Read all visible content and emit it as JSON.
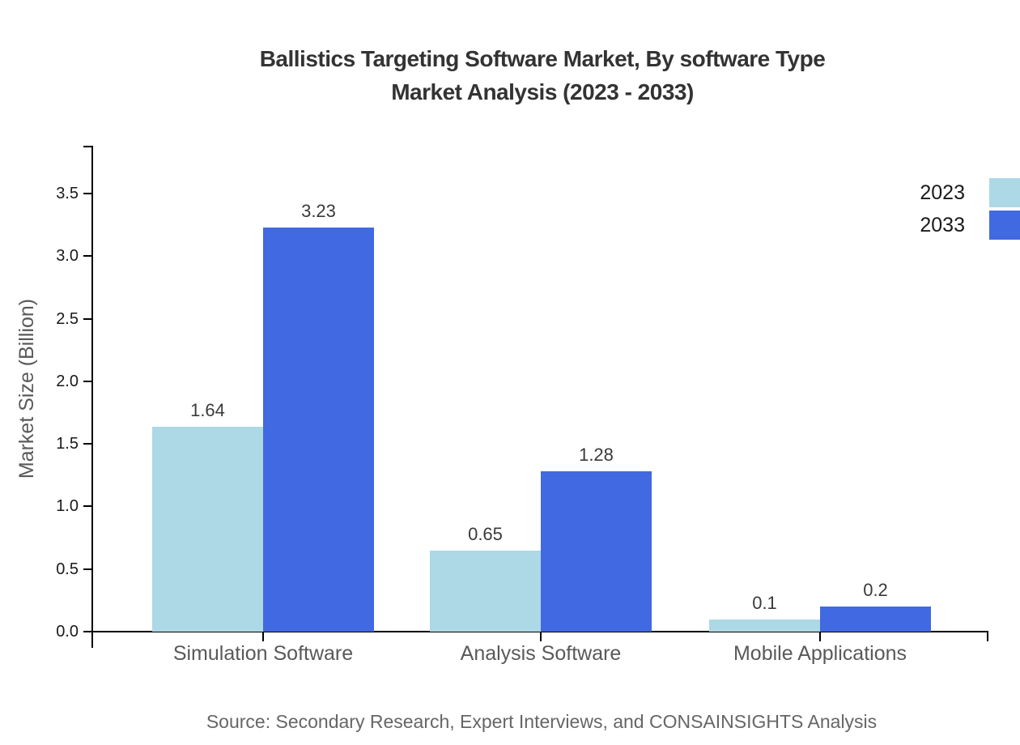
{
  "title": {
    "line1": "Ballistics Targeting Software Market, By software Type",
    "line2": "Market Analysis (2023 - 2033)"
  },
  "source": "Source: Secondary Research, Expert Interviews, and CONSAINSIGHTS Analysis",
  "colors": {
    "series_2023": "#ADD8E6",
    "series_2033": "#4169E1",
    "axis": "#000000",
    "title_text": "#333333",
    "muted_text": "#595959",
    "value_text": "#3a3a3a",
    "source_text": "#666666"
  },
  "chart_data": {
    "type": "bar",
    "title": "Ballistics Targeting Software Market, By software Type Market Analysis (2023 - 2033)",
    "categories": [
      "Simulation Software",
      "Analysis Software",
      "Mobile Applications"
    ],
    "series": [
      {
        "name": "2023",
        "color": "#ADD8E6",
        "values": [
          1.64,
          0.65,
          0.1
        ]
      },
      {
        "name": "2033",
        "color": "#4169E1",
        "values": [
          3.23,
          1.28,
          0.2
        ]
      }
    ],
    "xlabel": "",
    "ylabel": "Market Size (Billion)",
    "yticks": [
      0.0,
      0.5,
      1.0,
      1.5,
      2.0,
      2.5,
      3.0,
      3.5
    ],
    "ylim": [
      0,
      3.88
    ],
    "grid": false,
    "legend_position": "top-right",
    "value_labels_shown": true
  }
}
